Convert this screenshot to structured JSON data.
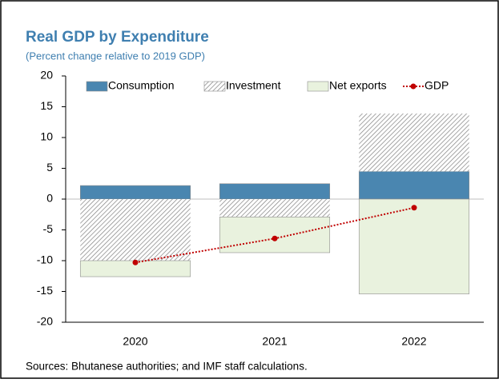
{
  "chart_data": {
    "type": "stacked_bar_line",
    "title": "Real GDP by Expenditure",
    "subtitle": "(Percent change relative to 2019 GDP)",
    "source": "Sources: Bhutanese authorities; and IMF staff calculations.",
    "categories": [
      "2020",
      "2021",
      "2022"
    ],
    "series": [
      {
        "name": "Consumption",
        "color": "#4a86b0",
        "values": [
          2.2,
          2.5,
          4.5
        ]
      },
      {
        "name": "Investment",
        "color": "#7f7f7f",
        "pattern": "hatch",
        "values": [
          -10.0,
          -2.9,
          9.4
        ]
      },
      {
        "name": "Net exports",
        "color": "#e9f2de",
        "values": [
          -2.6,
          -5.8,
          -15.4
        ]
      },
      {
        "name": "GDP",
        "color": "#c00000",
        "kind": "line",
        "values": [
          -10.3,
          -6.4,
          -1.4
        ]
      }
    ],
    "ylim": [
      -20,
      20
    ],
    "yticks": [
      -20,
      -15,
      -10,
      -5,
      0,
      5,
      10,
      15,
      20
    ],
    "legend": "top"
  }
}
